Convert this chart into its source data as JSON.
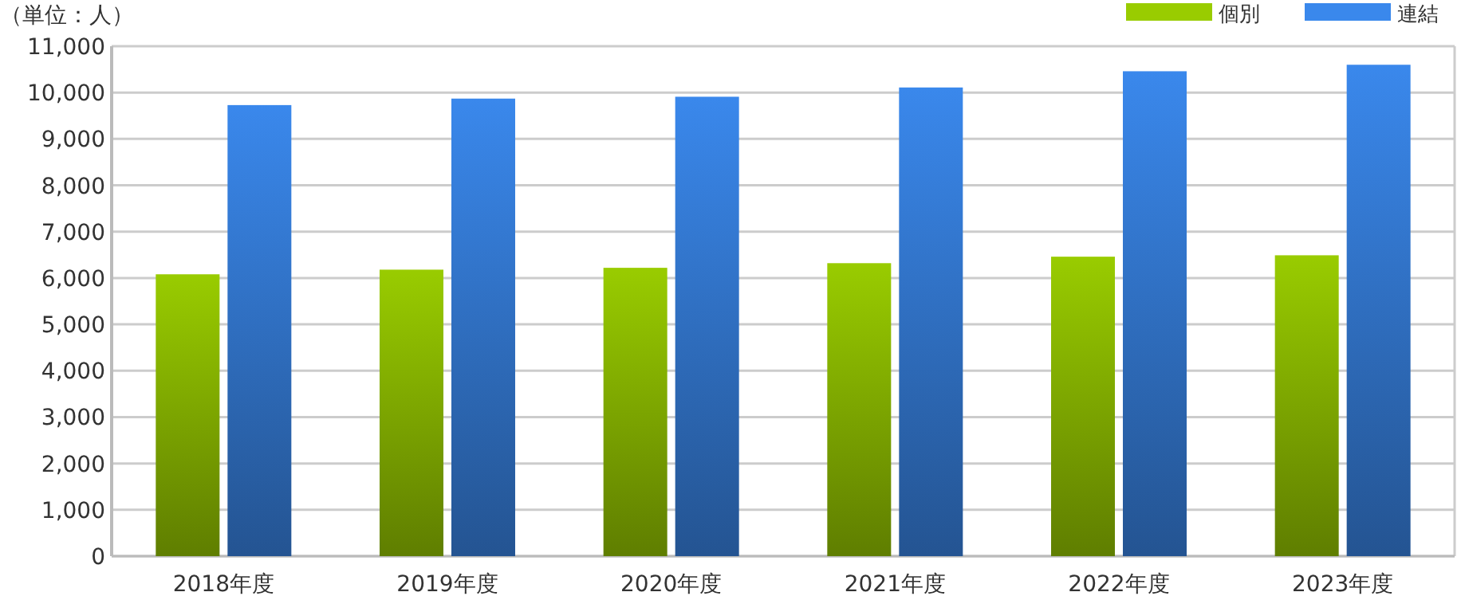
{
  "chart_data": {
    "type": "bar",
    "ylabel": "（単位：人）",
    "categories": [
      "2018年度",
      "2019年度",
      "2020年度",
      "2021年度",
      "2022年度",
      "2023年度"
    ],
    "series": [
      {
        "name": "個別",
        "color": "#99cc00",
        "values": [
          6080,
          6180,
          6220,
          6320,
          6460,
          6490
        ]
      },
      {
        "name": "連結",
        "color": "#3a88ec",
        "values": [
          9730,
          9870,
          9910,
          10110,
          10460,
          10600
        ]
      }
    ],
    "ylim": [
      0,
      11000
    ],
    "yticks": [
      0,
      {
        "value": 1000,
        "label": "1,000"
      },
      {
        "value": 2000,
        "label": "2,000"
      },
      {
        "value": 3000,
        "label": "3,000"
      },
      {
        "value": 4000,
        "label": "4,000"
      },
      {
        "value": 5000,
        "label": "5,000"
      },
      {
        "value": 6000,
        "label": "6,000"
      },
      {
        "value": 7000,
        "label": "7,000"
      },
      {
        "value": 8000,
        "label": "8,000"
      },
      {
        "value": 9000,
        "label": "9,000"
      },
      {
        "value": 10000,
        "label": "10,000"
      },
      {
        "value": 11000,
        "label": "11,000"
      }
    ],
    "grid": "y",
    "legend": "top right"
  }
}
